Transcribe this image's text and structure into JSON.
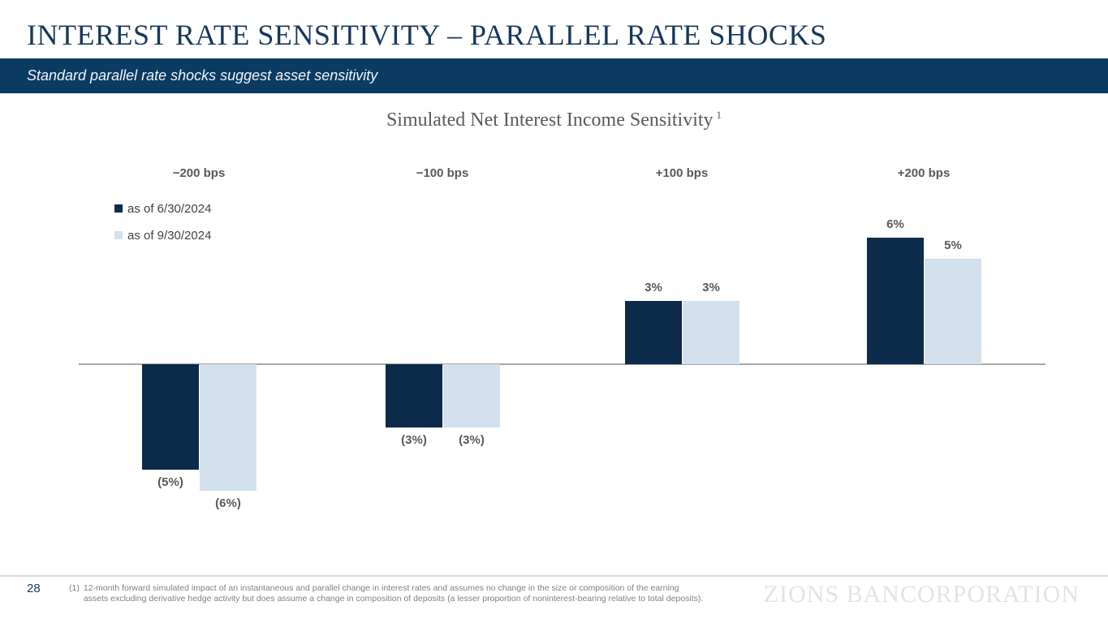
{
  "slide": {
    "title": "INTEREST RATE SENSITIVITY – PARALLEL RATE SHOCKS",
    "banner_text": "Standard parallel rate shocks suggest asset sensitivity",
    "page_number": "28",
    "footnote": {
      "marker": "(1)",
      "lines": [
        "12-month forward simulated impact of an instantaneous and parallel change in interest rates and assumes no change in the size or composition of the earning",
        "assets excluding derivative hedge activity but does assume a change in composition of deposits (a lesser proportion of noninterest-bearing relative to total deposits)."
      ]
    },
    "watermark": "ZIONS BANCORPORATION"
  },
  "chart_data": {
    "type": "bar",
    "title": "Simulated Net Interest Income Sensitivity",
    "footnote_ref": "1",
    "categories": [
      "−200 bps",
      "−100 bps",
      "+100 bps",
      "+200 bps"
    ],
    "series": [
      {
        "name": "as of 6/30/2024",
        "color": "#0d2b4b",
        "values": [
          -5,
          -3,
          3,
          6
        ],
        "labels": [
          "(5%)",
          "(3%)",
          "3%",
          "6%"
        ]
      },
      {
        "name": "as of 9/30/2024",
        "color": "#d3e1ef",
        "values": [
          -6,
          -3,
          3,
          5
        ],
        "labels": [
          "(6%)",
          "(3%)",
          "3%",
          "5%"
        ]
      }
    ],
    "unit": "%",
    "baseline": 0,
    "ylim": [
      -7,
      7
    ],
    "grid": false,
    "legend_position": "top-left"
  },
  "colors": {
    "title_navy": "#17375c",
    "banner_navy": "#0b3a63",
    "dark_series": "#0d2b4b",
    "light_series": "#d3e1ef",
    "label_gray": "#595959",
    "axis_gray": "#a6a6a6"
  }
}
